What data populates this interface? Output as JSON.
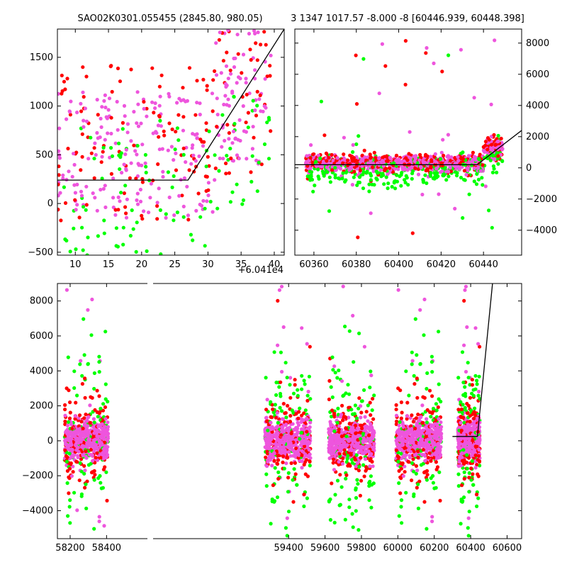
{
  "title_left": "SAO02K0301.055455 (2845.80, 980.05)",
  "title_right": "3 1347 1017.57 -8.000 -8 [60446.939, 60448.398]",
  "colors": {
    "red": "#ff0000",
    "green": "#00ff00",
    "magenta": "#ee55dd",
    "line": "#000000"
  },
  "chart_data": [
    {
      "type": "scatter",
      "name": "zoom-panel",
      "xlim": [
        60417.3,
        60451.5
      ],
      "ylim": [
        -530,
        1790
      ],
      "xticks": [
        10,
        15,
        20,
        25,
        30,
        35,
        40
      ],
      "yticks": [
        -500,
        0,
        500,
        1000,
        1500
      ],
      "x_offset_label": "+6.041e4",
      "line": [
        [
          60417.3,
          240
        ],
        [
          60437.0,
          240
        ],
        [
          60451.5,
          1790
        ]
      ]
    },
    {
      "type": "scatter",
      "name": "season-panel",
      "xlim": [
        60351,
        60458
      ],
      "ylim": [
        -5600,
        8900
      ],
      "xticks": [
        60360,
        60380,
        60400,
        60420,
        60440
      ],
      "yticks": [
        -4000,
        -2000,
        0,
        2000,
        4000,
        6000,
        8000
      ],
      "line": [
        [
          60351,
          200
        ],
        [
          60437,
          200
        ],
        [
          60458,
          2400
        ]
      ]
    },
    {
      "type": "scatter",
      "name": "full-panel",
      "xlim": [
        58130,
        60680
      ],
      "ylim": [
        -5600,
        9000
      ],
      "xticks": [
        58200,
        58400,
        59400,
        59600,
        59800,
        60000,
        60200,
        60400,
        60600
      ],
      "yticks": [
        -4000,
        -2000,
        0,
        2000,
        4000,
        6000,
        8000
      ],
      "line": [
        [
          60300,
          250
        ],
        [
          60437,
          250
        ],
        [
          60520,
          9000
        ]
      ],
      "seasons": [
        [
          58170,
          58410
        ],
        [
          59270,
          59520
        ],
        [
          59620,
          59870
        ],
        [
          59990,
          60240
        ],
        [
          60330,
          60450
        ]
      ]
    }
  ]
}
